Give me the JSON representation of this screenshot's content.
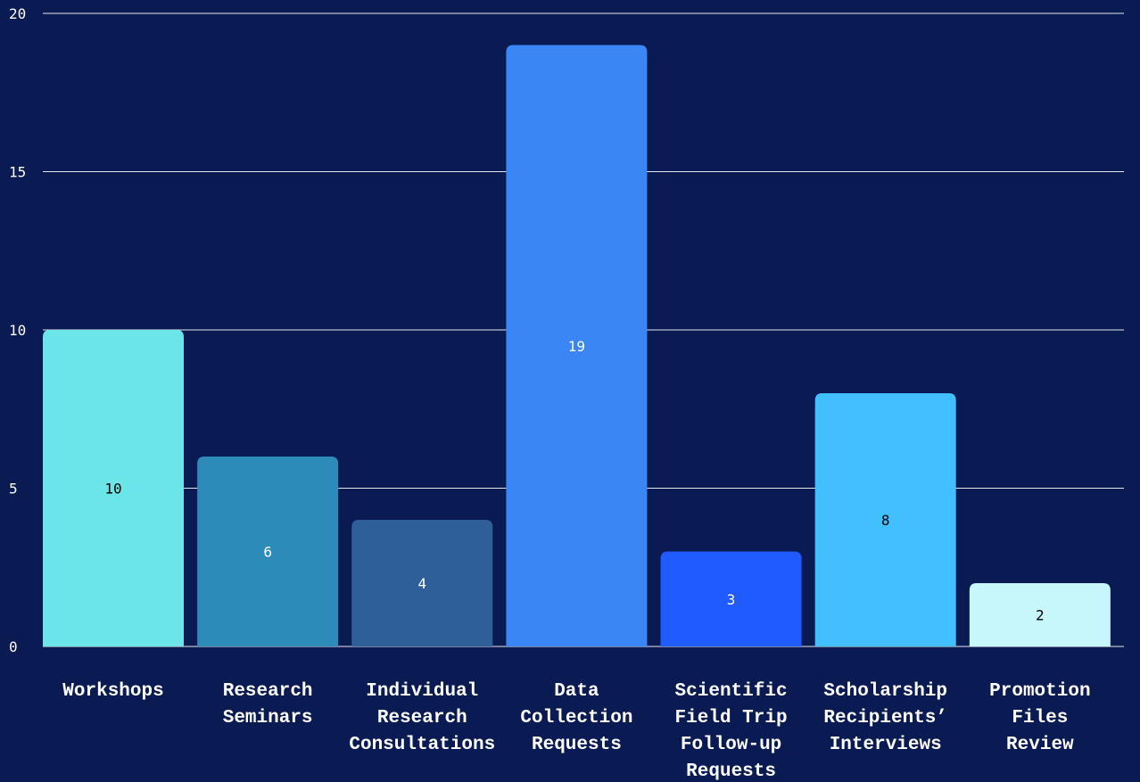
{
  "chart_data": {
    "type": "bar",
    "title": "",
    "xlabel": "",
    "ylabel": "",
    "ylim": [
      0,
      20
    ],
    "yticks": [
      0,
      5,
      10,
      15,
      20
    ],
    "grid": true,
    "legend": "none",
    "background": "#0a1a52",
    "categories": [
      "Workshops",
      "Research Seminars",
      "Individual Research Consultations",
      "Data Collection Requests",
      "Scientific Field Trip Follow-up Requests",
      "Scholarship Recipients’ Interviews",
      "Promotion Files Review"
    ],
    "values": [
      10,
      6,
      4,
      19,
      3,
      8,
      2
    ],
    "colors": [
      "#6ce5e8",
      "#2d8bba",
      "#2f5f98",
      "#3a86f5",
      "#1f5bff",
      "#41bfff",
      "#c8f7fb"
    ],
    "label_colors": [
      "#000000",
      "#ffffff",
      "#ffffff",
      "#ffffff",
      "#ffffff",
      "#000000",
      "#000000"
    ]
  }
}
